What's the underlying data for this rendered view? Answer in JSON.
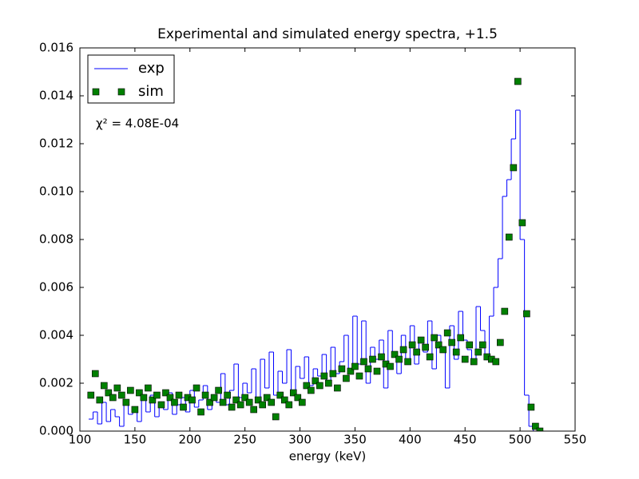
{
  "chart_data": {
    "type": "step-scatter",
    "title": "Experimental and simulated energy spectra, +1.5",
    "x_label": "energy (keV)",
    "annotation": "χ² = 4.08E-04",
    "legend": "upper left",
    "x": [
      110,
      114,
      118,
      122,
      126,
      130,
      134,
      138,
      142,
      146,
      150,
      154,
      158,
      162,
      166,
      170,
      174,
      178,
      182,
      186,
      190,
      194,
      198,
      202,
      206,
      210,
      214,
      218,
      222,
      226,
      230,
      234,
      238,
      242,
      246,
      250,
      254,
      258,
      262,
      266,
      270,
      274,
      278,
      282,
      286,
      290,
      294,
      298,
      302,
      306,
      310,
      314,
      318,
      322,
      326,
      330,
      334,
      338,
      342,
      346,
      350,
      354,
      358,
      362,
      366,
      370,
      374,
      378,
      382,
      386,
      390,
      394,
      398,
      402,
      406,
      410,
      414,
      418,
      422,
      426,
      430,
      434,
      438,
      442,
      446,
      450,
      454,
      458,
      462,
      466,
      470,
      474,
      478,
      482,
      486,
      490,
      494,
      498,
      502,
      506,
      510,
      514,
      518
    ],
    "series": [
      {
        "name": "exp",
        "color": "#0000ff",
        "values": [
          0.0005,
          0.0008,
          0.0003,
          0.0012,
          0.0004,
          0.0009,
          0.0006,
          0.0002,
          0.0011,
          0.0007,
          0.001,
          0.0004,
          0.0013,
          0.0008,
          0.0015,
          0.0006,
          0.0012,
          0.0009,
          0.0016,
          0.0007,
          0.0011,
          0.0014,
          0.0008,
          0.0017,
          0.001,
          0.0013,
          0.0019,
          0.0009,
          0.0015,
          0.0012,
          0.0024,
          0.0011,
          0.0017,
          0.0028,
          0.0014,
          0.002,
          0.0016,
          0.0026,
          0.0012,
          0.003,
          0.0018,
          0.0033,
          0.0015,
          0.0025,
          0.002,
          0.0034,
          0.0017,
          0.0027,
          0.0022,
          0.0031,
          0.0019,
          0.0026,
          0.0023,
          0.0032,
          0.0021,
          0.0035,
          0.0024,
          0.0029,
          0.004,
          0.0026,
          0.0048,
          0.0028,
          0.0046,
          0.002,
          0.0035,
          0.003,
          0.0038,
          0.0018,
          0.0042,
          0.0032,
          0.0024,
          0.004,
          0.003,
          0.0044,
          0.0028,
          0.0037,
          0.0033,
          0.0046,
          0.0026,
          0.004,
          0.0035,
          0.0018,
          0.0044,
          0.003,
          0.005,
          0.0038,
          0.0034,
          0.0028,
          0.0052,
          0.0042,
          0.0032,
          0.0048,
          0.006,
          0.0072,
          0.0098,
          0.0105,
          0.0122,
          0.0134,
          0.008,
          0.0015,
          0.0002,
          0,
          0
        ]
      },
      {
        "name": "sim",
        "color": "#008000",
        "values": [
          0.0015,
          0.0024,
          0.0013,
          0.0019,
          0.0016,
          0.0014,
          0.0018,
          0.0015,
          0.0012,
          0.0017,
          0.0009,
          0.0016,
          0.0014,
          0.0018,
          0.0013,
          0.0015,
          0.0011,
          0.0016,
          0.0014,
          0.0012,
          0.0015,
          0.001,
          0.0014,
          0.0013,
          0.0018,
          0.0008,
          0.0015,
          0.0012,
          0.0014,
          0.0017,
          0.0012,
          0.0015,
          0.001,
          0.0013,
          0.0011,
          0.0014,
          0.0012,
          0.0009,
          0.0013,
          0.0011,
          0.0014,
          0.0012,
          0.0006,
          0.0015,
          0.0013,
          0.0011,
          0.0016,
          0.0014,
          0.0012,
          0.0019,
          0.0017,
          0.0021,
          0.0019,
          0.0023,
          0.002,
          0.0024,
          0.0018,
          0.0026,
          0.0022,
          0.0025,
          0.0027,
          0.0023,
          0.0029,
          0.0026,
          0.003,
          0.0025,
          0.0031,
          0.0028,
          0.0027,
          0.0032,
          0.003,
          0.0034,
          0.0029,
          0.0036,
          0.0033,
          0.0038,
          0.0035,
          0.0031,
          0.0039,
          0.0036,
          0.0034,
          0.0041,
          0.0037,
          0.0033,
          0.0039,
          0.003,
          0.0036,
          0.0029,
          0.0033,
          0.0036,
          0.0031,
          0.003,
          0.0029,
          0.0037,
          0.005,
          0.0081,
          0.011,
          0.0146,
          0.0087,
          0.0049,
          0.001,
          0.0002,
          0
        ]
      }
    ],
    "xlim": [
      100,
      550
    ],
    "xticks": [
      100,
      150,
      200,
      250,
      300,
      350,
      400,
      450,
      500,
      550
    ],
    "ylim": [
      0,
      0.016
    ],
    "yticks": [
      {
        "value": 0,
        "label": "0.000"
      },
      {
        "value": 0.002,
        "label": "0.002"
      },
      {
        "value": 0.004,
        "label": "0.004"
      },
      {
        "value": 0.006,
        "label": "0.006"
      },
      {
        "value": 0.008,
        "label": "0.008"
      },
      {
        "value": 0.01,
        "label": "0.010"
      },
      {
        "value": 0.012,
        "label": "0.012"
      },
      {
        "value": 0.014,
        "label": "0.014"
      },
      {
        "value": 0.016,
        "label": "0.016"
      }
    ]
  }
}
